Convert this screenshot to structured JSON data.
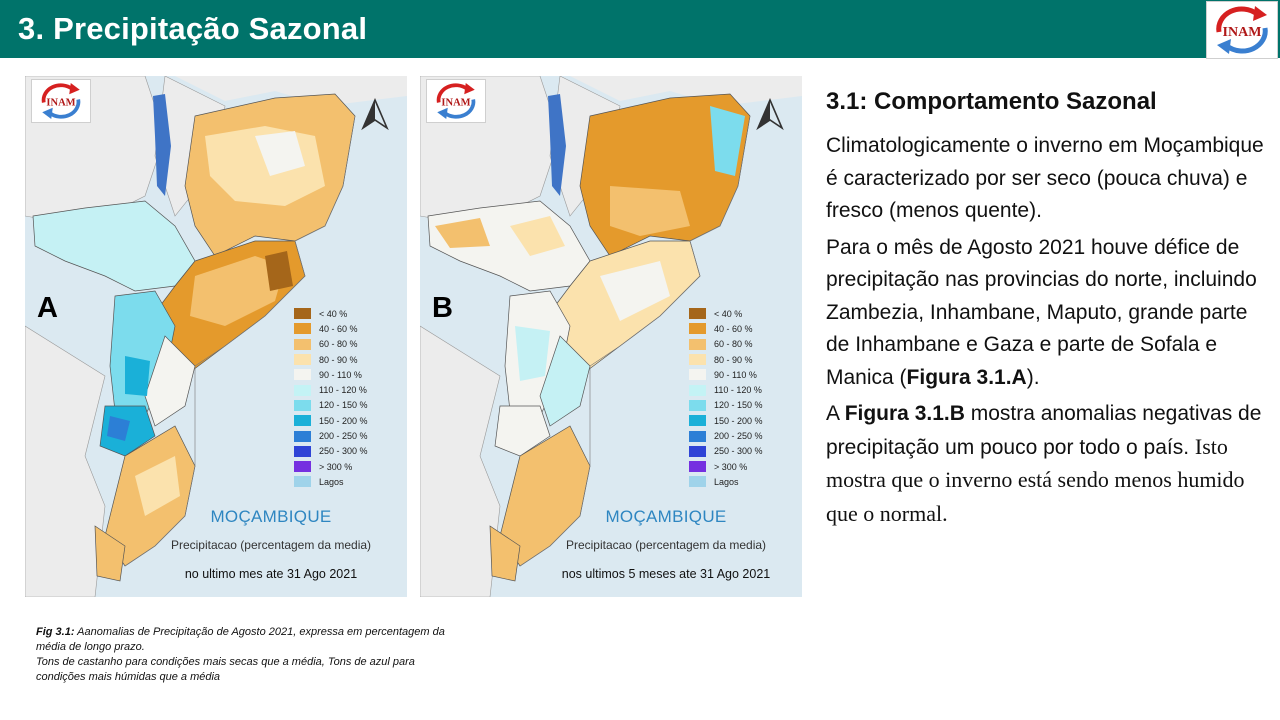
{
  "header": {
    "title": "3. Precipitação Sazonal",
    "logo_text": "INAM",
    "color": "#00736a"
  },
  "maps": [
    {
      "letter": "A",
      "logo_text": "INAM",
      "country": "MOÇAMBIQUE",
      "caption": "Precipitacao (percentagem da media)",
      "period": "no ultimo mes ate 31 Ago 2021"
    },
    {
      "letter": "B",
      "logo_text": "INAM",
      "country": "MOÇAMBIQUE",
      "caption": "Precipitacao (percentagem da media)",
      "period": "nos ultimos 5 meses ate 31 Ago 2021"
    }
  ],
  "legend": [
    {
      "label": "< 40 %",
      "color": "#a5661a"
    },
    {
      "label": "40 - 60 %",
      "color": "#e49a2c"
    },
    {
      "label": "60 - 80 %",
      "color": "#f3c06e"
    },
    {
      "label": "80 - 90 %",
      "color": "#fbe2ad"
    },
    {
      "label": "90 - 110 %",
      "color": "#f4f4f0"
    },
    {
      "label": "110 - 120 %",
      "color": "#c4f3f5"
    },
    {
      "label": "120 - 150 %",
      "color": "#7cdced"
    },
    {
      "label": "150 - 200 %",
      "color": "#1ab0d8"
    },
    {
      "label": "200 - 250 %",
      "color": "#2c7fd6"
    },
    {
      "label": "250 - 300 %",
      "color": "#2f44d6"
    },
    {
      "label": "> 300 %",
      "color": "#7530e0"
    },
    {
      "label": "Lagos",
      "color": "#9fd3ea"
    }
  ],
  "figure_caption": {
    "ref": "Fig 3.1:",
    "line1": "  Aanomalias de  Precipitação de Agosto 2021, expressa em percentagem da média de longo prazo.",
    "line2": "Tons de castanho para condições mais secas que a média, Tons de azul para condições mais húmidas que a média"
  },
  "section": {
    "title": "3.1: Comportamento Sazonal",
    "p1": "Climatologicamente o inverno em Moçambique é caracterizado por ser seco (pouca chuva) e fresco (menos quente).",
    "p2_pre": "Para o mês de Agosto 2021 houve défice de precipitação nas provincias do norte, incluindo Zambezia, Inhambane, Maputo, grande parte de Inhambane e Gaza e parte de Sofala e Manica (",
    "p2_ref": "Figura 3.1.A",
    "p2_post": ").",
    "p3_pre": "A ",
    "p3_ref": "Figura 3.1.B",
    "p3_mid": " mostra anomalias negativas de precipitação um pouco por todo o país. ",
    "p3_serif": "Isto mostra que o inverno está sendo menos humido que o normal."
  }
}
